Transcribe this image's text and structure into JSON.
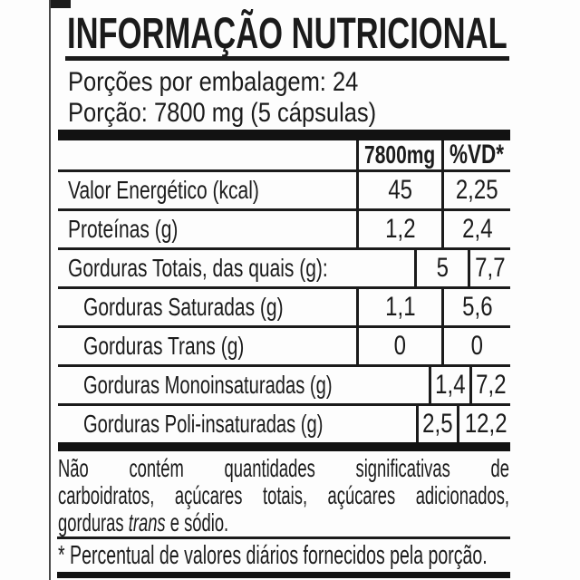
{
  "header": {
    "title": "INFORMAÇÃO NUTRICIONAL",
    "servings_per_package": "Porções por embalagem: 24",
    "serving_size": "Porção: 7800 mg (5 cápsulas)"
  },
  "table": {
    "columns": {
      "quantity": "7800mg",
      "daily_value": "%VD*"
    },
    "rows": [
      {
        "label": "Valor Energético (kcal)",
        "qty": "45",
        "vd": "2,25",
        "indent": false
      },
      {
        "label": "Proteínas (g)",
        "qty": "1,2",
        "vd": "2,4",
        "indent": false
      },
      {
        "label": "Gorduras Totais, das quais (g):",
        "qty": "5",
        "vd": "7,7",
        "indent": false
      },
      {
        "label": "Gorduras Saturadas (g)",
        "qty": "1,1",
        "vd": "5,6",
        "indent": true
      },
      {
        "label": "Gorduras Trans (g)",
        "qty": "0",
        "vd": "0",
        "indent": true
      },
      {
        "label": "Gorduras Monoinsaturadas (g)",
        "qty": "1,4",
        "vd": "7,2",
        "indent": true
      },
      {
        "label": "Gorduras Poli-insaturadas (g)",
        "qty": "2,5",
        "vd": "12,2",
        "indent": true
      }
    ]
  },
  "notes": {
    "line1": "Não contém quantidades significativas de",
    "line2": "carboidratos, açúcares totais, açúcares adicionados,",
    "line3_prefix": "gorduras ",
    "line3_italic": "trans",
    "line3_suffix": " e sódio.",
    "footnote": "* Percentual de valores diários fornecidos pela porção."
  },
  "colors": {
    "ink": "#1b1b1b",
    "bar": "#121212",
    "background": "#fdfdfd"
  }
}
